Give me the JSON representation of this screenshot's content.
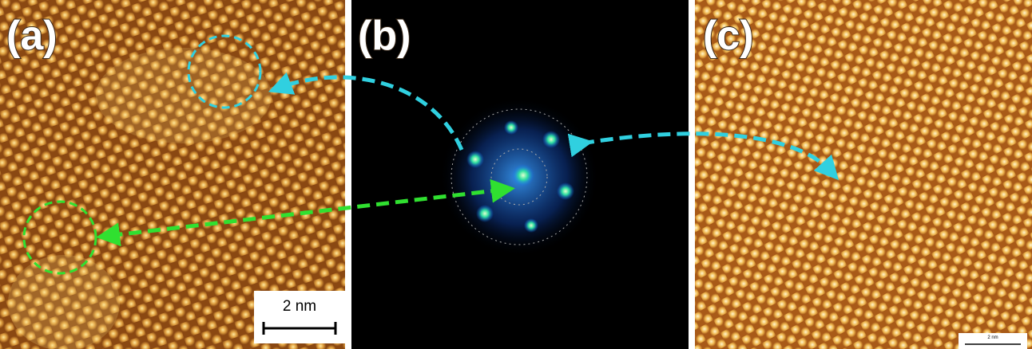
{
  "panels": [
    {
      "label": "(a)",
      "scale_bar": "2 nm"
    },
    {
      "label": "(b)"
    },
    {
      "label": "(c)",
      "scale_bar": "2 nm"
    }
  ]
}
